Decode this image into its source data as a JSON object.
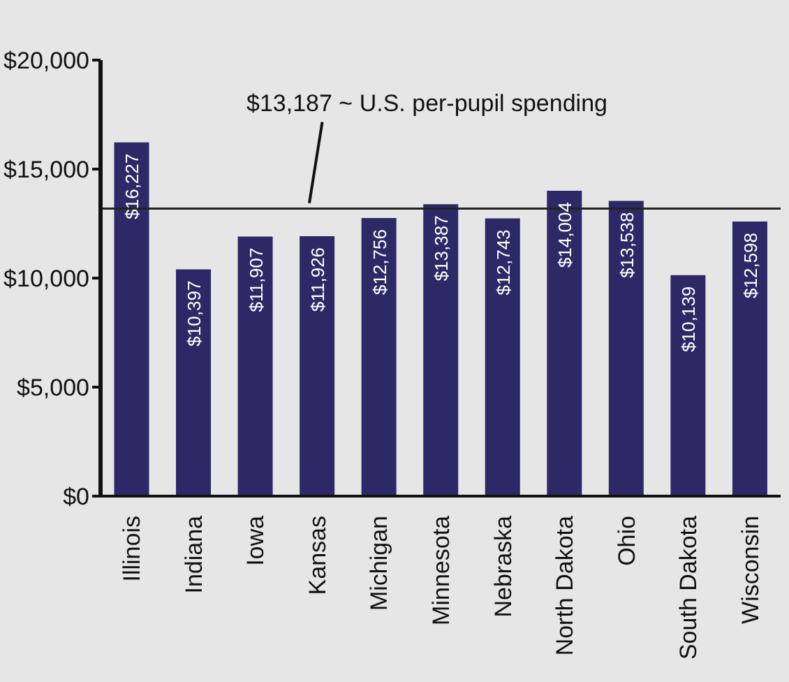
{
  "chart_data": {
    "type": "bar",
    "categories": [
      "Illinois",
      "Indiana",
      "Iowa",
      "Kansas",
      "Michigan",
      "Minnesota",
      "Nebraska",
      "North Dakota",
      "Ohio",
      "South Dakota",
      "Wisconsin"
    ],
    "values": [
      16227,
      10397,
      11907,
      11926,
      12756,
      13387,
      12743,
      14004,
      13538,
      10139,
      12598
    ],
    "color": "#2d2966",
    "value_labels": [
      "$16,227",
      "$10,397",
      "$11,907",
      "$11,926",
      "$12,756",
      "$13,387",
      "$12,743",
      "$14,004",
      "$13,538",
      "$10,139",
      "$12,598"
    ],
    "ylim": [
      0,
      20000
    ],
    "yticks": [
      {
        "value": 0,
        "label": "$0"
      },
      {
        "value": 5000,
        "label": "$5,000"
      },
      {
        "value": 10000,
        "label": "$10,000"
      },
      {
        "value": 15000,
        "label": "$15,000"
      },
      {
        "value": 20000,
        "label": "$20,000"
      }
    ],
    "ref_lines": [
      {
        "axis": "y",
        "value": 13187,
        "label": "$13,187 ~ U.S. per-pupil spending",
        "color": "#222222"
      }
    ],
    "grid": false,
    "legend": false
  }
}
